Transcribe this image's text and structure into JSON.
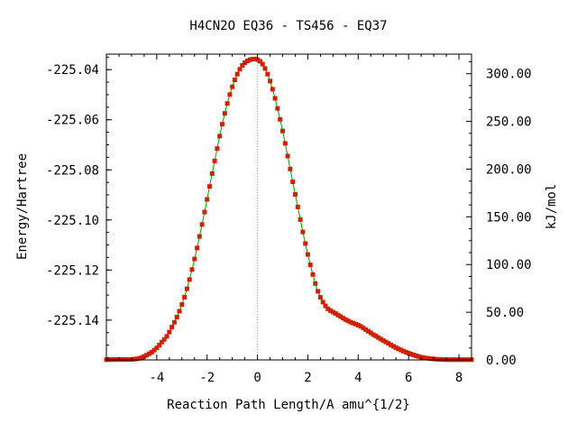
{
  "chart_data": {
    "type": "line",
    "title": "H4CN2O   EQ36 - TS456 - EQ37",
    "xlabel": "Reaction Path Length/A amu^{1/2}",
    "ylabel": "Energy/Hartree",
    "y2label": "kJ/mol",
    "xlim": [
      -6.0,
      8.5
    ],
    "ylim": [
      -225.1559,
      -225.0338
    ],
    "y2lim": [
      0.0,
      320.5
    ],
    "x_ticks": [
      -4,
      -2,
      0,
      2,
      4,
      6,
      8
    ],
    "x_tick_labels": [
      "-4",
      "-2",
      "0",
      "2",
      "4",
      "6",
      "8"
    ],
    "y_ticks": [
      -225.04,
      -225.06,
      -225.08,
      -225.1,
      -225.12,
      -225.14
    ],
    "y_tick_labels": [
      "-225.04",
      "-225.06",
      "-225.08",
      "-225.10",
      "-225.12",
      "-225.14"
    ],
    "y2_ticks": [
      0,
      50,
      100,
      150,
      200,
      250,
      300
    ],
    "y2_tick_labels": [
      "0.00",
      "50.00",
      "100.00",
      "150.00",
      "200.00",
      "250.00",
      "300.00"
    ],
    "ts_x": 0.0,
    "line_color": "#00a000",
    "marker_color": "#cc2200",
    "vline_color": "#999999",
    "series": [
      {
        "x": [
          -6.0,
          -5.5,
          -5.0,
          -4.7,
          -4.5,
          -4.2,
          -4.0,
          -3.8,
          -3.6,
          -3.4,
          -3.2,
          -3.0,
          -2.8,
          -2.6,
          -2.4,
          -2.2,
          -2.0,
          -1.8,
          -1.6,
          -1.4,
          -1.2,
          -1.0,
          -0.8,
          -0.6,
          -0.4,
          -0.2,
          0.0,
          0.2,
          0.4,
          0.6,
          0.8,
          1.0,
          1.2,
          1.4,
          1.6,
          1.8,
          2.0,
          2.2,
          2.4,
          2.6,
          2.8,
          3.0,
          3.2,
          3.5,
          3.8,
          4.0,
          4.3,
          4.6,
          5.0,
          5.5,
          6.0,
          6.5,
          7.0,
          7.3,
          7.6,
          8.0,
          8.5
        ],
        "y": [
          -225.1558,
          -225.1557,
          -225.1557,
          -225.1553,
          -225.1545,
          -225.1528,
          -225.1511,
          -225.1488,
          -225.1465,
          -225.1428,
          -225.1388,
          -225.1338,
          -225.1275,
          -225.1198,
          -225.1112,
          -225.1018,
          -225.0918,
          -225.0815,
          -225.0715,
          -225.0618,
          -225.0535,
          -225.0468,
          -225.0418,
          -225.0383,
          -225.0365,
          -225.0358,
          -225.036,
          -225.0378,
          -225.0418,
          -225.0478,
          -225.0555,
          -225.0645,
          -225.0745,
          -225.0848,
          -225.0948,
          -225.1048,
          -225.1138,
          -225.1218,
          -225.1285,
          -225.1328,
          -225.1355,
          -225.1368,
          -225.138,
          -225.1398,
          -225.1412,
          -225.142,
          -225.1438,
          -225.1458,
          -225.1482,
          -225.151,
          -225.1532,
          -225.1548,
          -225.1555,
          -225.1557,
          -225.1558,
          -225.1558,
          -225.1558
        ]
      }
    ]
  }
}
